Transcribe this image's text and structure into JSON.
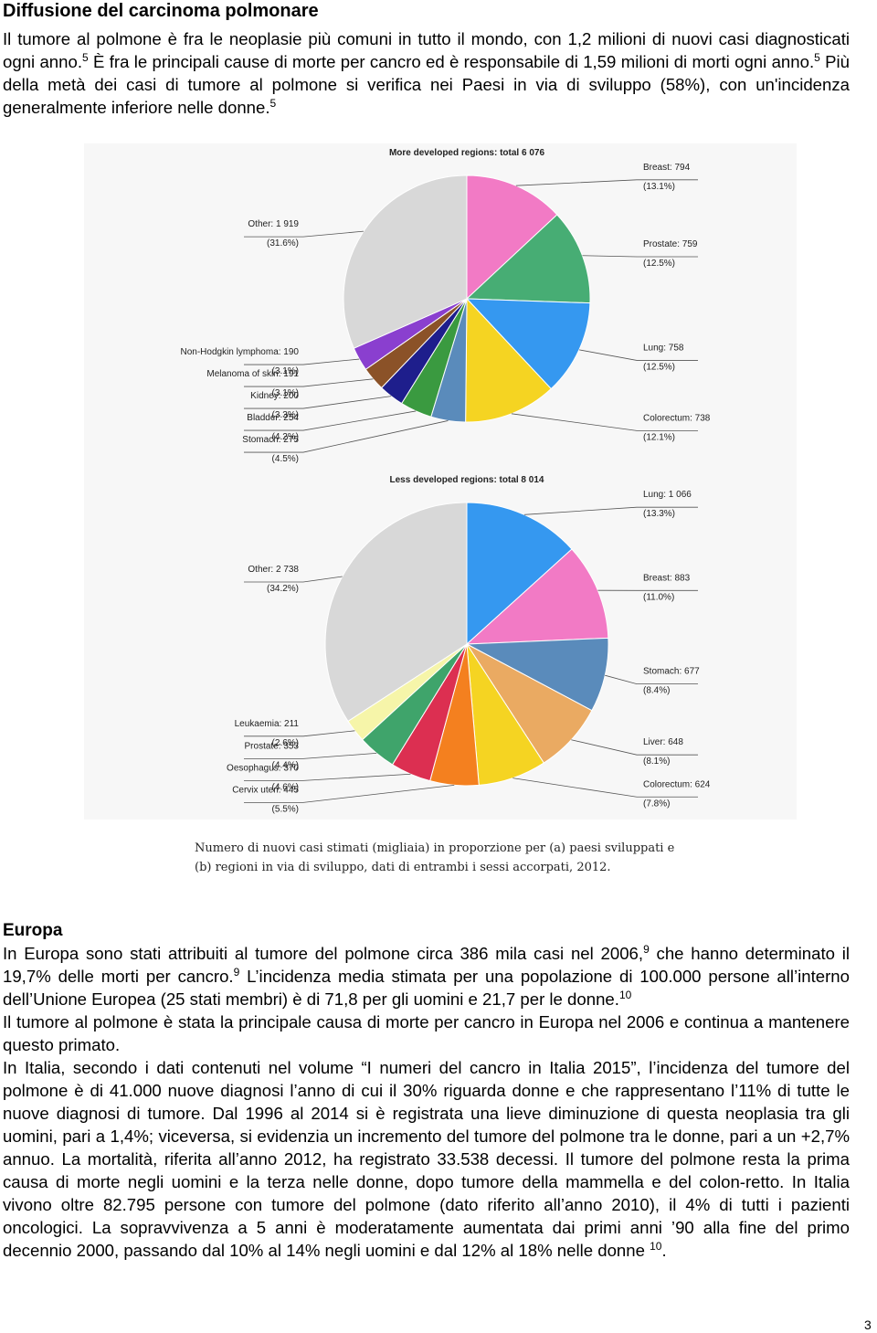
{
  "title": "Diffusione del carcinoma polmonare",
  "intro": [
    {
      "text": "Il tumore al polmone è fra le neoplasie più comuni in tutto il mondo, con 1,2 milioni di nuovi casi diagnosticati ogni anno."
    },
    {
      "sup": "5"
    },
    {
      "text": " È fra le principali cause di morte per cancro ed è responsabile di 1,59 milioni di morti ogni anno."
    },
    {
      "sup": "5"
    },
    {
      "text": " Più della metà dei casi di tumore al polmone si verifica nei Paesi in via di sviluppo (58%), con un'incidenza generalmente inferiore nelle donne."
    },
    {
      "sup": "5"
    }
  ],
  "chart_data": [
    {
      "type": "pie",
      "title": "More developed regions: total 6 076",
      "labels": [
        "Breast: 794",
        "Prostate: 759",
        "Lung: 758",
        "Colorectum: 738",
        "Stomach: 275",
        "Bladder: 254",
        "Kidney: 200",
        "Melanoma of skin: 191",
        "Non-Hodgkin lymphoma: 190",
        "Other: 1 919"
      ],
      "values": [
        794,
        759,
        758,
        738,
        275,
        254,
        200,
        191,
        190,
        1919
      ],
      "percent_labels": [
        "(13.1%)",
        "(12.5%)",
        "(12.5%)",
        "(12.1%)",
        "(4.5%)",
        "(4.2%)",
        "(3.3%)",
        "(3.1%)",
        "(3.1%)",
        "(31.6%)"
      ],
      "colors": [
        "#f27ac5",
        "#47ad74",
        "#3598f0",
        "#f5d422",
        "#5a8bbb",
        "#3a9a40",
        "#1e1e8c",
        "#8b5228",
        "#8a3fcf",
        "#d8d8d8"
      ]
    },
    {
      "type": "pie",
      "title": "Less developed regions: total 8 014",
      "labels": [
        "Lung: 1 066",
        "Breast: 883",
        "Stomach: 677",
        "Liver: 648",
        "Colorectum: 624",
        "Cervix uteri: 445",
        "Oesophagus: 370",
        "Prostate: 353",
        "Leukaemia: 211",
        "Other: 2 738"
      ],
      "values": [
        1066,
        883,
        677,
        648,
        624,
        445,
        370,
        353,
        211,
        2738
      ],
      "percent_labels": [
        "(13.3%)",
        "(11.0%)",
        "(8.4%)",
        "(8.1%)",
        "(7.8%)",
        "(5.5%)",
        "(4.6%)",
        "(4.4%)",
        "(2.6%)",
        "(34.2%)"
      ],
      "colors": [
        "#3598f0",
        "#f27ac5",
        "#5a8bbb",
        "#eaaa62",
        "#f5d422",
        "#f4801f",
        "#dc2f51",
        "#3fa46b",
        "#f6f5a9",
        "#d8d8d8"
      ]
    }
  ],
  "caption": "Numero di nuovi casi stimati (migliaia) in proporzione per (a) paesi sviluppati e (b) regioni in via di sviluppo, dati di entrambi i sessi accorpati, 2012.",
  "section": {
    "heading": "Europa",
    "paragraphs": [
      [
        {
          "text": "In Europa sono stati attribuiti al tumore del polmone circa 386 mila casi nel 2006,"
        },
        {
          "sup": "9"
        },
        {
          "text": " che hanno determinato il 19,7% delle morti per cancro."
        },
        {
          "sup": "9"
        },
        {
          "text": " L’incidenza media stimata per una popolazione di 100.000 persone all’interno dell’Unione Europea (25 stati membri) è di 71,8 per gli uomini e 21,7 per le donne."
        },
        {
          "sup": "10"
        }
      ],
      [
        {
          "text": "Il tumore al polmone è stata la principale causa di morte per cancro in Europa nel 2006 e continua a mantenere questo primato."
        }
      ],
      [
        {
          "text": "In Italia, secondo i dati contenuti nel volume “I numeri del cancro in Italia 2015”, l’incidenza del tumore del polmone è di 41.000 nuove diagnosi l’anno di cui il 30% riguarda donne e che rappresentano l’11% di tutte le nuove diagnosi di tumore. Dal 1996 al 2014 si è registrata una lieve diminuzione di questa neoplasia tra gli uomini, pari a 1,4%; viceversa, si evidenzia un incremento del tumore del polmone tra le donne, pari a un +2,7% annuo. La mortalità, riferita all’anno 2012, ha registrato 33.538 decessi. Il tumore del polmone resta la prima causa di morte negli uomini e la terza nelle donne, dopo tumore della mammella e del colon-retto. In Italia vivono oltre 82.795 persone con tumore del polmone (dato riferito all’anno 2010), il 4% di tutti i pazienti oncologici. La sopravvivenza a 5 anni è moderatamente aumentata dai primi anni ’90 alla fine del primo decennio 2000, passando dal 10% al 14% negli uomini e dal 12% al 18% nelle donne "
        },
        {
          "sup": "10"
        },
        {
          "text": "."
        }
      ]
    ]
  },
  "page_number": "3"
}
